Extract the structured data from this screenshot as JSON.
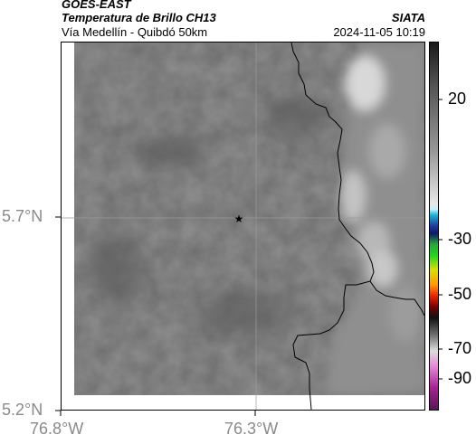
{
  "header": {
    "satellite": "GOES-EAST",
    "product": "Temperatura de Brillo CH13",
    "route": "Vía Medellín - Quibdó 50km",
    "agency": "SIATA",
    "datetime": "2024-11-05 10:19"
  },
  "map": {
    "lat_ticks": [
      "5.7°N",
      "5.2°N"
    ],
    "lon_ticks": [
      "76.8°W",
      "76.3°W"
    ],
    "marker_symbol": "★",
    "colors": {
      "background_gray": "#6c6c6c",
      "cloud_light": "#d8d8d8",
      "border_line": "#000000",
      "gridline": "#9a9a9a"
    }
  },
  "colorbar": {
    "tick_labels": [
      "20",
      "-30",
      "-50",
      "-70",
      "-90"
    ],
    "stops": [
      {
        "v": 0.0,
        "c": "#1a1a1a"
      },
      {
        "v": 0.12,
        "c": "#555555"
      },
      {
        "v": 0.3,
        "c": "#9a9a9a"
      },
      {
        "v": 0.44,
        "c": "#e8e8e8"
      },
      {
        "v": 0.455,
        "c": "#bfefff"
      },
      {
        "v": 0.47,
        "c": "#19b5d6"
      },
      {
        "v": 0.5,
        "c": "#1f3a9e"
      },
      {
        "v": 0.52,
        "c": "#0c1a6b"
      },
      {
        "v": 0.55,
        "c": "#29a83a"
      },
      {
        "v": 0.58,
        "c": "#1ed61e"
      },
      {
        "v": 0.62,
        "c": "#dede00"
      },
      {
        "v": 0.66,
        "c": "#ff9900"
      },
      {
        "v": 0.69,
        "c": "#ee2200"
      },
      {
        "v": 0.72,
        "c": "#7a0000"
      },
      {
        "v": 0.75,
        "c": "#111111"
      },
      {
        "v": 0.8,
        "c": "#777777"
      },
      {
        "v": 0.84,
        "c": "#dddddd"
      },
      {
        "v": 0.88,
        "c": "#e88ad8"
      },
      {
        "v": 0.94,
        "c": "#a82296"
      },
      {
        "v": 1.0,
        "c": "#5a1556"
      }
    ]
  }
}
